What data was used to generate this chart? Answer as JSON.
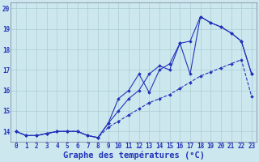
{
  "xlabel": "Graphe des températures (°C)",
  "hours": [
    0,
    1,
    2,
    3,
    4,
    5,
    6,
    7,
    8,
    9,
    10,
    11,
    12,
    13,
    14,
    15,
    16,
    17,
    18,
    19,
    20,
    21,
    22,
    23
  ],
  "line1": [
    14.0,
    13.8,
    13.8,
    13.9,
    14.0,
    14.0,
    14.0,
    13.8,
    13.7,
    14.4,
    15.6,
    16.0,
    16.8,
    15.9,
    17.0,
    17.3,
    18.3,
    16.8,
    19.6,
    19.3,
    19.1,
    18.8,
    18.4,
    16.8
  ],
  "line2": [
    14.0,
    13.8,
    13.8,
    13.9,
    14.0,
    14.0,
    14.0,
    13.8,
    13.7,
    14.4,
    15.0,
    15.6,
    16.0,
    16.8,
    17.2,
    17.0,
    18.3,
    18.4,
    19.6,
    19.3,
    19.1,
    18.8,
    18.4,
    16.8
  ],
  "line3": [
    14.0,
    13.8,
    13.8,
    13.9,
    14.0,
    14.0,
    14.0,
    13.8,
    13.7,
    14.2,
    14.5,
    14.8,
    15.1,
    15.4,
    15.6,
    15.8,
    16.1,
    16.4,
    16.7,
    16.9,
    17.1,
    17.3,
    17.5,
    15.7
  ],
  "line_color": "#2233bb",
  "bg_color": "#cce8ee",
  "grid_color": "#aaccd4",
  "ylim": [
    13.5,
    20.3
  ],
  "yticks": [
    14,
    15,
    16,
    17,
    18,
    19,
    20
  ],
  "tick_fontsize": 5.5,
  "xlabel_fontsize": 7.5
}
